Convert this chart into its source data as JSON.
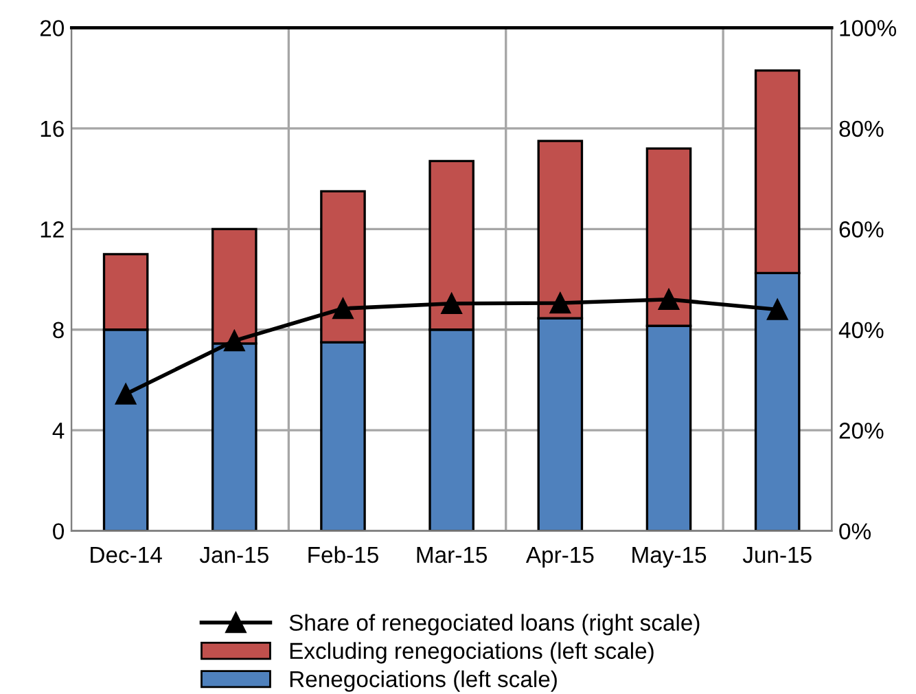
{
  "chart_data": {
    "type": "bar",
    "stacked": true,
    "categories": [
      "Dec-14",
      "Jan-15",
      "Feb-15",
      "Mar-15",
      "Apr-15",
      "May-15",
      "Jun-15"
    ],
    "series": [
      {
        "name": "Renegociations (left scale)",
        "color": "#4f81bd",
        "values": [
          8.0,
          7.45,
          7.5,
          8.0,
          8.45,
          8.15,
          10.25
        ]
      },
      {
        "name": "Excluding renegociations (left scale)",
        "color": "#c0504d",
        "values": [
          3.0,
          4.55,
          6.0,
          6.7,
          7.05,
          7.05,
          8.05
        ]
      },
      {
        "name": "Share of renegociated loans (right scale)",
        "type": "line",
        "axis": "y2",
        "color": "#000000",
        "marker": "triangle",
        "values": [
          27.2,
          37.8,
          44.2,
          45.2,
          45.3,
          46.0,
          44.0
        ]
      }
    ],
    "ylim": [
      0,
      20
    ],
    "yticks": [
      0,
      4,
      8,
      12,
      16,
      20
    ],
    "y2lim": [
      0,
      100
    ],
    "y2ticks": [
      {
        "value": 0,
        "label": "0%"
      },
      {
        "value": 20,
        "label": "20%"
      },
      {
        "value": 40,
        "label": "40%"
      },
      {
        "value": 60,
        "label": "60%"
      },
      {
        "value": 80,
        "label": "80%"
      },
      {
        "value": 100,
        "label": "100%"
      }
    ],
    "grid": true,
    "legend": "bottom"
  }
}
